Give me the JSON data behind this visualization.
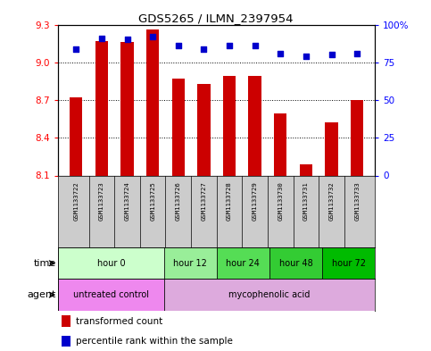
{
  "title": "GDS5265 / ILMN_2397954",
  "samples": [
    "GSM1133722",
    "GSM1133723",
    "GSM1133724",
    "GSM1133725",
    "GSM1133726",
    "GSM1133727",
    "GSM1133728",
    "GSM1133729",
    "GSM1133730",
    "GSM1133731",
    "GSM1133732",
    "GSM1133733"
  ],
  "bar_values": [
    8.72,
    9.17,
    9.16,
    9.26,
    8.87,
    8.83,
    8.89,
    8.89,
    8.59,
    8.19,
    8.52,
    8.7
  ],
  "percentile_values": [
    84,
    91,
    90,
    92,
    86,
    84,
    86,
    86,
    81,
    79,
    80,
    81
  ],
  "bar_color": "#cc0000",
  "percentile_color": "#0000cc",
  "ymin": 8.1,
  "ymax": 9.3,
  "yticks": [
    8.1,
    8.4,
    8.7,
    9.0,
    9.3
  ],
  "right_yticks": [
    0,
    25,
    50,
    75,
    100
  ],
  "right_ylabels": [
    "0",
    "25",
    "50",
    "75",
    "100%"
  ],
  "time_groups": [
    {
      "label": "hour 0",
      "start": 0,
      "end": 4,
      "color": "#ccffcc"
    },
    {
      "label": "hour 12",
      "start": 4,
      "end": 6,
      "color": "#99ee99"
    },
    {
      "label": "hour 24",
      "start": 6,
      "end": 8,
      "color": "#55dd55"
    },
    {
      "label": "hour 48",
      "start": 8,
      "end": 10,
      "color": "#33cc33"
    },
    {
      "label": "hour 72",
      "start": 10,
      "end": 12,
      "color": "#00bb00"
    }
  ],
  "agent_groups": [
    {
      "label": "untreated control",
      "start": 0,
      "end": 4,
      "color": "#ee88ee"
    },
    {
      "label": "mycophenolic acid",
      "start": 4,
      "end": 12,
      "color": "#ddaadd"
    }
  ],
  "legend_bar_label": "transformed count",
  "legend_pct_label": "percentile rank within the sample",
  "time_label": "time",
  "agent_label": "agent"
}
